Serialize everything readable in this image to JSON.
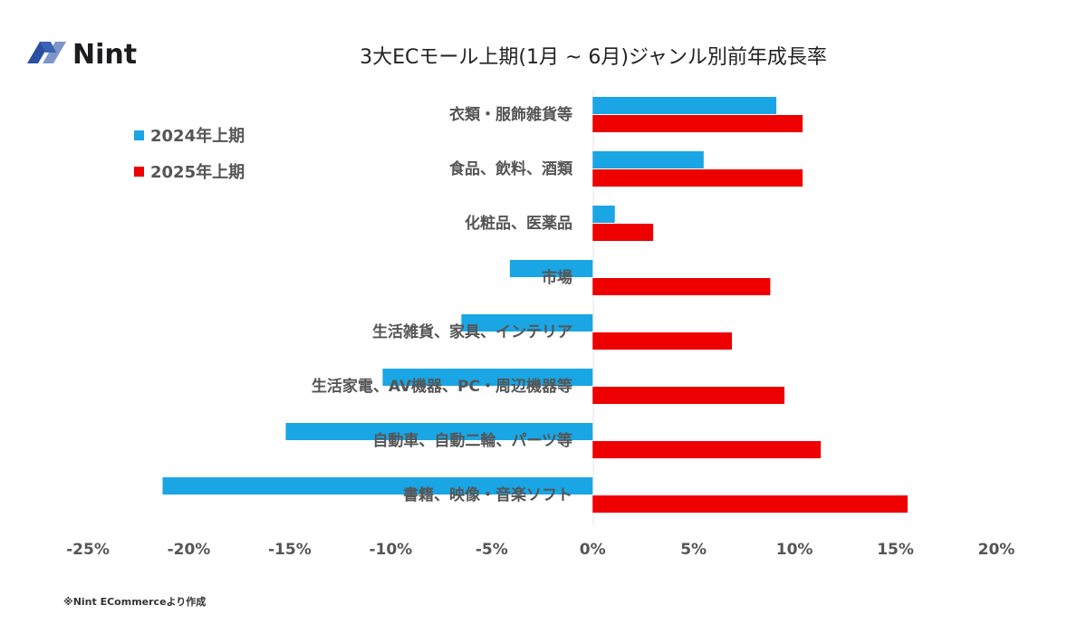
{
  "logo": {
    "text": "Nint"
  },
  "note": "※Nint ECommerceより作成",
  "chart_data": {
    "type": "bar",
    "orientation": "horizontal",
    "title": "3大ECモール上期(1月 ~ 6月)ジャンル別前年成長率",
    "categories": [
      "衣類・服飾雑貨等",
      "食品、飲料、酒類",
      "化粧品、医薬品",
      "市場",
      "生活雑貨、家具、インテリア",
      "生活家電、AV機器、PC・周辺機器等",
      "自動車、自動二輪、パーツ等",
      "書籍、映像・音楽ソフト"
    ],
    "series": [
      {
        "name": "2024年上期",
        "color": "#1aa6e4",
        "values": [
          9.1,
          5.5,
          1.1,
          -4.1,
          -6.5,
          -10.4,
          -15.2,
          -21.3
        ]
      },
      {
        "name": "2025年上期",
        "color": "#ee0000",
        "values": [
          10.4,
          10.4,
          3.0,
          8.8,
          6.9,
          9.5,
          11.3,
          15.6
        ]
      }
    ],
    "xlim": [
      -25,
      20
    ],
    "xticks": [
      -25,
      -20,
      -15,
      -10,
      -5,
      0,
      5,
      10,
      15,
      20
    ],
    "tick_labels": [
      "-25%",
      "-20%",
      "-15%",
      "-10%",
      "-5%",
      "0%",
      "5%",
      "10%",
      "15%",
      "20%"
    ],
    "xlabel": "",
    "ylabel": "",
    "legend_position": "top-left",
    "grid": false
  }
}
